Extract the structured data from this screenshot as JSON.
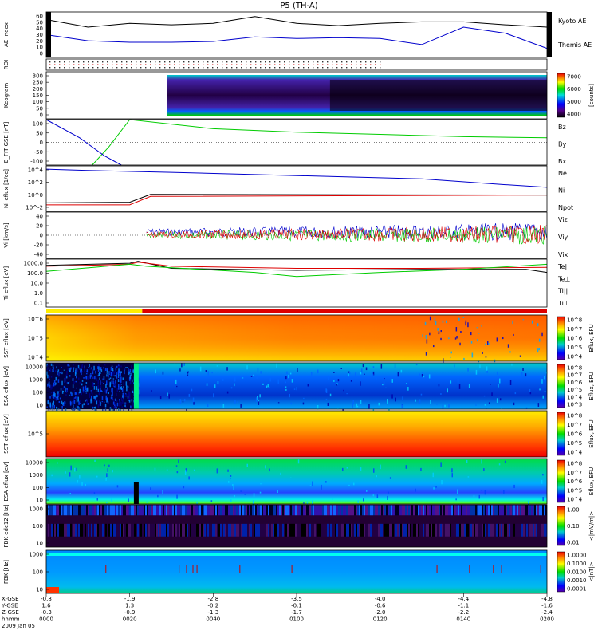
{
  "title": "P5 (TH-A)",
  "time_axis": {
    "row_labels": [
      "X-GSE",
      "Y-GSE",
      "Z-GSE",
      "hhmm",
      "2009 Jan 05"
    ],
    "ticks": [
      {
        "xgse": "-0.8",
        "ygse": "1.6",
        "zgse": "-0.3",
        "hhmm": "0000"
      },
      {
        "xgse": "-1.9",
        "ygse": "1.3",
        "zgse": "-0.9",
        "hhmm": "0020"
      },
      {
        "xgse": "-2.8",
        "ygse": "-0.2",
        "zgse": "-1.3",
        "hhmm": "0040"
      },
      {
        "xgse": "-3.5",
        "ygse": "-0.1",
        "zgse": "-1.7",
        "hhmm": "0100"
      },
      {
        "xgse": "-4.0",
        "ygse": "-0.6",
        "zgse": "-2.0",
        "hhmm": "0120"
      },
      {
        "xgse": "-4.4",
        "ygse": "-1.1",
        "zgse": "-2.2",
        "hhmm": "0140"
      },
      {
        "xgse": "-4.8",
        "ygse": "-1.6",
        "zgse": "-2.4",
        "hhmm": "0200"
      }
    ]
  },
  "colors": {
    "blue": "#0000cc",
    "black": "#000000",
    "red": "#dd0000",
    "green": "#00cc00"
  },
  "chart_data": [
    {
      "panel": "AE Index",
      "type": "line",
      "ylabel": "AE Index",
      "yticks": [
        "60",
        "50",
        "40",
        "30",
        "20",
        "10",
        "0"
      ],
      "ylim": [
        0,
        60
      ],
      "series": [
        {
          "name": "Kyoto AE",
          "color": "#0000cc",
          "x": [
            0,
            10,
            20,
            30,
            40,
            50,
            60,
            70,
            80,
            90,
            100,
            110,
            120
          ],
          "values": [
            30,
            22,
            20,
            20,
            21,
            27,
            25,
            26,
            25,
            17,
            40,
            32,
            12
          ]
        },
        {
          "name": "Themis AE",
          "color": "#000000",
          "x": [
            0,
            10,
            20,
            30,
            40,
            50,
            60,
            70,
            80,
            90,
            100,
            110,
            120
          ],
          "values": [
            50,
            40,
            45,
            43,
            45,
            54,
            45,
            42,
            45,
            47,
            47,
            43,
            40
          ]
        }
      ]
    },
    {
      "panel": "ROI",
      "type": "line",
      "ylabel": "ROI",
      "yticks": [],
      "series": []
    },
    {
      "panel": "Keogram",
      "type": "heatmap",
      "ylabel": "Keogram",
      "yticks": [
        "300",
        "250",
        "200",
        "150",
        "100",
        "50",
        "0"
      ],
      "ylim": [
        0,
        300
      ],
      "colorbar": {
        "label": "[counts]",
        "ticks": [
          "7000",
          "6000",
          "5000",
          "4000"
        ]
      }
    },
    {
      "panel": "B FIT",
      "type": "line",
      "ylabel": "B_FIT GSE [nT]",
      "yticks": [
        "100",
        "50",
        "0",
        "-50",
        "-100"
      ],
      "ylim": [
        -100,
        100
      ],
      "series": [
        {
          "name": "Bz",
          "color": "#dd0000",
          "x": [],
          "values": []
        },
        {
          "name": "By",
          "color": "#00cc00",
          "x": [
            11,
            15,
            20,
            40,
            60,
            80,
            100,
            120
          ],
          "values": [
            -100,
            -20,
            100,
            60,
            45,
            35,
            25,
            20
          ]
        },
        {
          "name": "Bx",
          "color": "#0000cc",
          "x": [
            0,
            8,
            14,
            18
          ],
          "values": [
            100,
            20,
            -60,
            -100
          ]
        }
      ]
    },
    {
      "panel": "Ni",
      "type": "line",
      "ylabel": "Ni eflux [1/cc]",
      "yscale": "log",
      "yticks": [
        "10^4",
        "10^2",
        "10^0",
        "10^-2"
      ],
      "ylim": [
        -2.5,
        4.5
      ],
      "series": [
        {
          "name": "Ne",
          "color": "#dd0000",
          "x": [
            0,
            20,
            25,
            120
          ],
          "values": [
            -1.5,
            -1.5,
            -0.2,
            0.0
          ]
        },
        {
          "name": "Ni",
          "color": "#0000cc",
          "x": [
            0,
            10,
            30,
            60,
            90,
            110,
            120
          ],
          "values": [
            4.0,
            3.8,
            3.5,
            3.0,
            2.5,
            1.6,
            1.2
          ]
        },
        {
          "name": "Npot",
          "color": "#000000",
          "x": [
            0,
            20,
            25,
            120
          ],
          "values": [
            -1.2,
            -1.1,
            0.1,
            0.0
          ]
        }
      ]
    },
    {
      "panel": "Vi",
      "type": "line",
      "ylabel": "Vi [km/s]",
      "yticks": [
        "40",
        "20",
        "0",
        "-20",
        "-40"
      ],
      "ylim": [
        -50,
        50
      ],
      "series": [
        {
          "name": "Viz",
          "color": "#dd0000",
          "x": [],
          "values": []
        },
        {
          "name": "Viy",
          "color": "#00cc00",
          "x": [],
          "values": []
        },
        {
          "name": "Vix",
          "color": "#0000cc",
          "x": [],
          "values": []
        }
      ]
    },
    {
      "panel": "Ti",
      "type": "line",
      "ylabel": "Ti eflux [eV]",
      "yscale": "log",
      "yticks": [
        "1000.0",
        "100.0",
        "10.0",
        "1.0",
        "0.1"
      ],
      "ylim": [
        -1.2,
        3.5
      ],
      "series": [
        {
          "name": "Te||",
          "color": "#000000",
          "x": [
            0,
            20,
            22,
            30,
            60,
            90,
            115,
            120
          ],
          "values": [
            2.9,
            3.1,
            3.3,
            2.6,
            2.4,
            2.5,
            2.5,
            2.2
          ]
        },
        {
          "name": "Te⊥",
          "color": "#dd0000",
          "x": [
            0,
            20,
            22,
            30,
            60,
            90,
            120
          ],
          "values": [
            2.8,
            3.0,
            3.2,
            2.8,
            2.6,
            2.6,
            2.7
          ]
        },
        {
          "name": "Ti||",
          "color": "#00cc00",
          "x": [
            0,
            20,
            24,
            50,
            60,
            80,
            100,
            120
          ],
          "values": [
            2.3,
            3.0,
            2.8,
            2.2,
            1.8,
            2.2,
            2.5,
            3.0
          ]
        },
        {
          "name": "Ti⊥",
          "color": "#0000cc",
          "x": [],
          "values": []
        }
      ]
    },
    {
      "panel": "SST e",
      "type": "heatmap",
      "ylabel": "SST eflux [eV]",
      "yticks": [
        "10^6",
        "10^5",
        "10^4"
      ],
      "colorbar": {
        "label": "Eflux, EFU",
        "ticks": [
          "10^8",
          "10^7",
          "10^6",
          "10^5",
          "10^4"
        ]
      }
    },
    {
      "panel": "ESA e",
      "type": "heatmap",
      "ylabel": "ESA eflux [eV]",
      "yticks": [
        "10000",
        "1000",
        "100",
        "10"
      ],
      "colorbar": {
        "label": "Eflux, EFU",
        "ticks": [
          "10^8",
          "10^7",
          "10^6",
          "10^5",
          "10^4",
          "10^3"
        ]
      }
    },
    {
      "panel": "SST i",
      "type": "heatmap",
      "ylabel": "SST eflux [eV]",
      "yticks": [
        "10^5"
      ],
      "colorbar": {
        "label": "Eflux, EFU",
        "ticks": [
          "10^8",
          "10^7",
          "10^6",
          "10^5",
          "10^4"
        ]
      }
    },
    {
      "panel": "ESA i",
      "type": "heatmap",
      "ylabel": "ESA eflux [eV]",
      "yticks": [
        "10000",
        "1000",
        "100",
        "10"
      ],
      "colorbar": {
        "label": "Eflux, EFU",
        "ticks": [
          "10^8",
          "10^7",
          "10^6",
          "10^5",
          "10^4"
        ]
      }
    },
    {
      "panel": "FBK edc12",
      "type": "heatmap",
      "ylabel": "FBK edc12 [Hz]",
      "yticks": [
        "1000",
        "100",
        "10"
      ],
      "colorbar": {
        "label": "<|mV/m|>",
        "ticks": [
          "1.00",
          "0.10",
          "0.01"
        ]
      }
    },
    {
      "panel": "FBK scm",
      "type": "heatmap",
      "ylabel": "FBK [Hz]",
      "yticks": [
        "1000",
        "100",
        "10"
      ],
      "colorbar": {
        "label": "<|nT|>",
        "ticks": [
          "1.0000",
          "0.1000",
          "0.0100",
          "0.0010",
          "0.0001"
        ]
      }
    }
  ]
}
